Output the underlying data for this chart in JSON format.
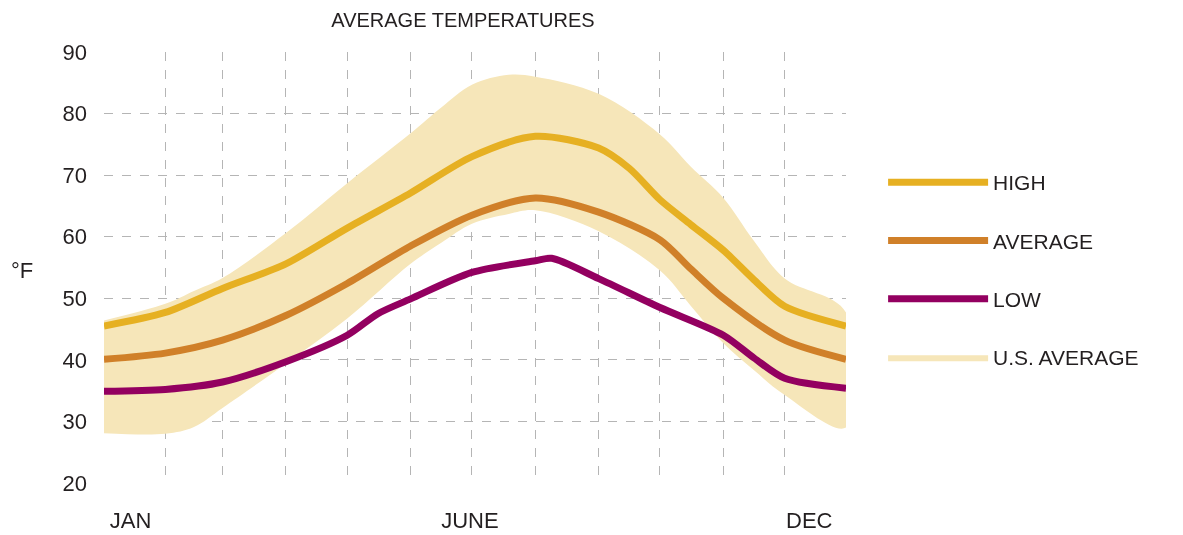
{
  "chart_data": {
    "type": "line",
    "title": "AVERAGE TEMPERATURES",
    "ylabel": "°F",
    "series": [
      {
        "name": "HIGH",
        "color": "#e6b022",
        "x": [
          "--01-02",
          "--02-01",
          "--03-01",
          "--04-01",
          "--05-01",
          "--06-01",
          "--07-01",
          "--08-01",
          "--09-01",
          "--09-16",
          "--10-01",
          "--10-16",
          "--11-01",
          "--11-16",
          "--12-01",
          "--12-31"
        ],
        "values": [
          45.5,
          47.7,
          51.6,
          55.6,
          61.4,
          67.1,
          73,
          76.3,
          74.4,
          71.1,
          66,
          62,
          57.8,
          53,
          48.7,
          45.5
        ]
      },
      {
        "name": "AVERAGE",
        "color": "#d08029",
        "x": [
          "--01-02",
          "--02-01",
          "--03-01",
          "--04-01",
          "--05-01",
          "--06-01",
          "--07-01",
          "--08-01",
          "--09-01",
          "--10-01",
          "--10-16",
          "--11-01",
          "--12-01",
          "--12-31"
        ],
        "values": [
          40.1,
          41.1,
          43.2,
          47.2,
          52.4,
          58.5,
          63.5,
          66.3,
          64,
          59.5,
          54.8,
          50,
          43.2,
          40.1
        ]
      },
      {
        "name": "LOW",
        "color": "#930060",
        "x": [
          "--01-02",
          "--02-01",
          "--03-01",
          "--04-01",
          "--05-01",
          "--05-16",
          "--06-01",
          "--07-01",
          "--08-01",
          "--08-09",
          "--09-01",
          "--10-01",
          "--11-01",
          "--11-16",
          "--12-01",
          "--12-31"
        ],
        "values": [
          34.9,
          35.2,
          36.4,
          39.7,
          44,
          47.5,
          49.9,
          54.2,
          56.1,
          56.5,
          53.2,
          48.5,
          44,
          40.3,
          37,
          35.4
        ]
      },
      {
        "name": "U.S. AVERAGE",
        "type": "area",
        "color": "#f6e6b9",
        "x": [
          "--01-02",
          "--02-01",
          "--02-15",
          "--03-01",
          "--04-01",
          "--05-01",
          "--06-01",
          "--06-16",
          "--07-01",
          "--07-19",
          "--08-01",
          "--09-01",
          "--10-01",
          "--10-16",
          "--11-01",
          "--11-16",
          "--12-01",
          "--12-31"
        ],
        "values": [
          null,
          null,
          null,
          null,
          null,
          null,
          null,
          null,
          null,
          null,
          null,
          null,
          null,
          null,
          null,
          null,
          null,
          null
        ],
        "upper": [
          46.4,
          49.1,
          51.2,
          53.3,
          60.6,
          68.7,
          76.8,
          81,
          84.7,
          86.3,
          86,
          83.2,
          76.6,
          71.4,
          66.3,
          59.3,
          53.2,
          47.7
        ],
        "lower": [
          28.1,
          28,
          29.1,
          32.2,
          39.4,
          46.7,
          55.6,
          59,
          62.1,
          63.7,
          64.3,
          60.9,
          54.5,
          48.8,
          42.7,
          38.3,
          34.3,
          29
        ]
      }
    ],
    "xlim": [
      "--01-02",
      "--12-31"
    ],
    "xticks": [
      {
        "value": "--01-15",
        "label": "JAN"
      },
      {
        "value": "--02-01",
        "label": null
      },
      {
        "value": "--03-01",
        "label": null
      },
      {
        "value": "--04-01",
        "label": null
      },
      {
        "value": "--05-01",
        "label": null
      },
      {
        "value": "--06-01",
        "label": null
      },
      {
        "value": "--06-30",
        "label": "JUNE"
      },
      {
        "value": "--07-01",
        "label": null
      },
      {
        "value": "--08-01",
        "label": null
      },
      {
        "value": "--09-01",
        "label": null
      },
      {
        "value": "--10-01",
        "label": null
      },
      {
        "value": "--11-01",
        "label": null
      },
      {
        "value": "--12-01",
        "label": null
      },
      {
        "value": "--12-13",
        "label": "DEC"
      }
    ],
    "ylim": [
      20,
      90
    ],
    "yticks": [
      20,
      30,
      40,
      50,
      60,
      70,
      80,
      90
    ],
    "grid": true,
    "legend": "right"
  }
}
